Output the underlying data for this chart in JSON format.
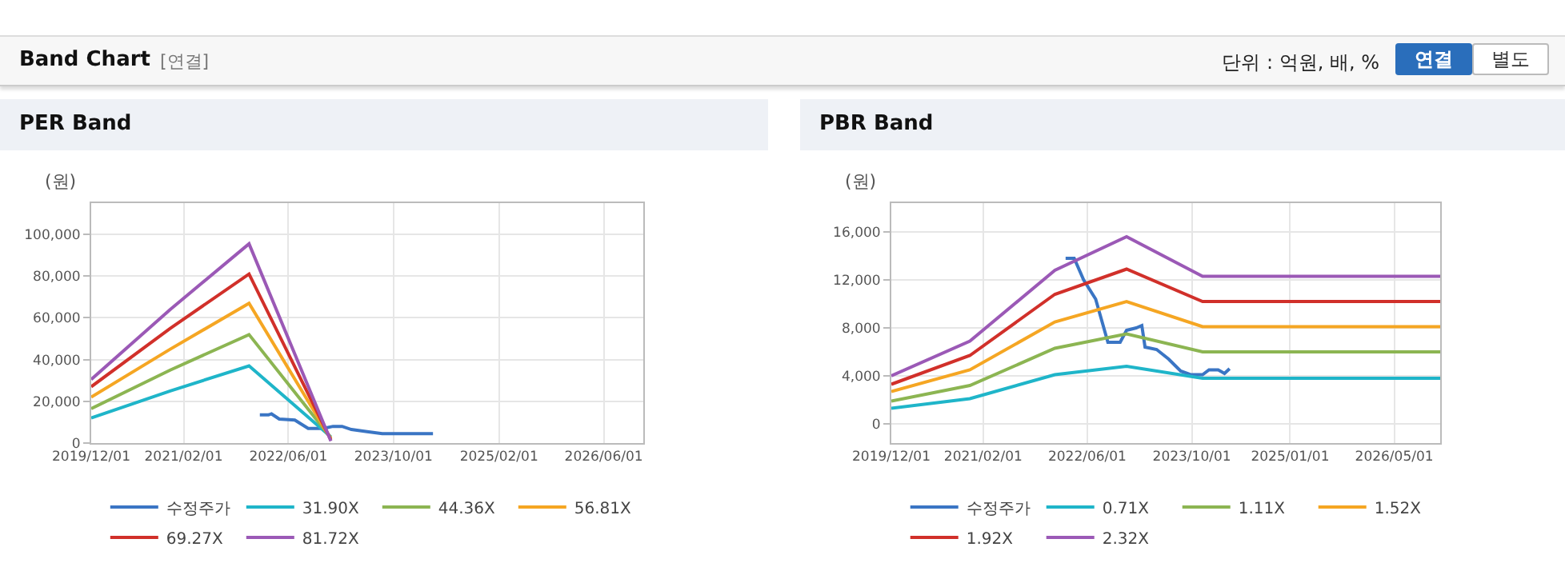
{
  "chart_data": [
    {
      "type": "line",
      "title": "PER Band",
      "ylabel": "(원)",
      "annotations": [
        "Band Chart",
        "[연결]",
        "단위 : 억원, 배, %",
        "연결",
        "별도"
      ],
      "xlim": [
        "2019-12-01",
        "2026-12-01"
      ],
      "xticks": [
        {
          "value": "2019-12-01",
          "label": "2019/12/01"
        },
        {
          "value": "2021-02-01",
          "label": "2021/02/01"
        },
        {
          "value": "2022-06-01",
          "label": "2022/06/01"
        },
        {
          "value": "2023-10-01",
          "label": "2023/10/01"
        },
        {
          "value": "2025-02-01",
          "label": "2025/02/01"
        },
        {
          "value": "2026-06-01",
          "label": "2026/06/01"
        }
      ],
      "ylim": [
        0,
        115000
      ],
      "yticks": [
        {
          "value": 0,
          "label": "0"
        },
        {
          "value": 20000,
          "label": "20,000"
        },
        {
          "value": 40000,
          "label": "40,000"
        },
        {
          "value": 60000,
          "label": "60,000"
        },
        {
          "value": 80000,
          "label": "80,000"
        },
        {
          "value": 100000,
          "label": "100,000"
        }
      ],
      "grid": true,
      "legend": "bottom",
      "marker": "none",
      "line_style": "solid",
      "series": [
        {
          "name": "수정주가",
          "color": "#3a75c4",
          "x": [
            "2022-01-20",
            "2022-03-01",
            "2022-03-15",
            "2022-04-20",
            "2022-07-01",
            "2022-09-01",
            "2022-11-10",
            "2022-12-25",
            "2023-02-05",
            "2023-03-20",
            "2023-06-01",
            "2023-08-10",
            "2024-04-01"
          ],
          "values": [
            13500,
            13500,
            14000,
            11500,
            11000,
            7000,
            7000,
            8000,
            8000,
            6500,
            5500,
            4500,
            4500
          ]
        },
        {
          "name": "31.90X",
          "color": "#1fb5c9",
          "x": [
            "2019-12-01",
            "2020-12-01",
            "2021-12-01",
            "2022-12-15"
          ],
          "values": [
            12000,
            25000,
            37000,
            3000
          ]
        },
        {
          "name": "44.36X",
          "color": "#8cb552",
          "x": [
            "2019-12-01",
            "2020-12-01",
            "2021-12-01",
            "2022-12-15"
          ],
          "values": [
            16500,
            35000,
            52000,
            2500
          ]
        },
        {
          "name": "56.81X",
          "color": "#f5a623",
          "x": [
            "2019-12-01",
            "2020-12-01",
            "2021-12-01",
            "2022-12-15"
          ],
          "values": [
            22000,
            45000,
            67000,
            2000
          ]
        },
        {
          "name": "69.27X",
          "color": "#d1302a",
          "x": [
            "2019-12-01",
            "2020-12-01",
            "2021-12-01",
            "2022-12-15"
          ],
          "values": [
            27000,
            55000,
            81000,
            1500
          ]
        },
        {
          "name": "81.72X",
          "color": "#9b59b6",
          "x": [
            "2019-12-01",
            "2020-12-01",
            "2021-12-01",
            "2022-12-15"
          ],
          "values": [
            30500,
            64000,
            95500,
            1000
          ]
        }
      ]
    },
    {
      "type": "line",
      "title": "PBR Band",
      "ylabel": "(원)",
      "xlim": [
        "2019-12-01",
        "2026-12-01"
      ],
      "xticks": [
        {
          "value": "2019-12-01",
          "label": "2019/12/01"
        },
        {
          "value": "2021-02-01",
          "label": "2021/02/01"
        },
        {
          "value": "2022-06-01",
          "label": "2022/06/01"
        },
        {
          "value": "2023-10-01",
          "label": "2023/10/01"
        },
        {
          "value": "2025-01-01",
          "label": "2025/01/01"
        },
        {
          "value": "2026-05-01",
          "label": "2026/05/01"
        }
      ],
      "ylim": [
        -1600,
        18400
      ],
      "yticks": [
        {
          "value": 0,
          "label": "0"
        },
        {
          "value": 4000,
          "label": "4,000"
        },
        {
          "value": 8000,
          "label": "8,000"
        },
        {
          "value": 12000,
          "label": "12,000"
        },
        {
          "value": 16000,
          "label": "16,000"
        }
      ],
      "grid": true,
      "legend": "bottom",
      "marker": "none",
      "line_style": "solid",
      "series": [
        {
          "name": "수정주가",
          "color": "#3a75c4",
          "x": [
            "2022-02-20",
            "2022-04-01",
            "2022-05-15",
            "2022-07-10",
            "2022-09-05",
            "2022-11-01",
            "2022-12-01",
            "2023-01-15",
            "2023-02-10",
            "2023-02-25",
            "2023-04-20",
            "2023-06-15",
            "2023-08-10",
            "2023-09-25",
            "2023-11-20",
            "2023-12-20",
            "2024-02-01",
            "2024-03-01",
            "2024-03-25"
          ],
          "values": [
            13800,
            13800,
            12000,
            10400,
            6800,
            6800,
            7800,
            8000,
            8200,
            6400,
            6200,
            5400,
            4400,
            4100,
            4100,
            4500,
            4500,
            4200,
            4600
          ]
        },
        {
          "name": "0.71X",
          "color": "#1fb5c9",
          "x": [
            "2019-12-01",
            "2020-12-01",
            "2022-01-01",
            "2022-12-01",
            "2023-11-20",
            "2026-12-01"
          ],
          "values": [
            1300,
            2100,
            4100,
            4800,
            3800,
            3800
          ]
        },
        {
          "name": "1.11X",
          "color": "#8cb552",
          "x": [
            "2019-12-01",
            "2020-12-01",
            "2022-01-01",
            "2022-12-01",
            "2023-11-20",
            "2026-12-01"
          ],
          "values": [
            1900,
            3200,
            6300,
            7500,
            6000,
            6000
          ]
        },
        {
          "name": "1.52X",
          "color": "#f5a623",
          "x": [
            "2019-12-01",
            "2020-12-01",
            "2022-01-01",
            "2022-12-01",
            "2023-11-20",
            "2026-12-01"
          ],
          "values": [
            2700,
            4500,
            8500,
            10200,
            8100,
            8100
          ]
        },
        {
          "name": "1.92X",
          "color": "#d1302a",
          "x": [
            "2019-12-01",
            "2020-12-01",
            "2022-01-01",
            "2022-12-01",
            "2023-11-20",
            "2026-12-01"
          ],
          "values": [
            3300,
            5700,
            10800,
            12900,
            10200,
            10200
          ]
        },
        {
          "name": "2.32X",
          "color": "#9b59b6",
          "x": [
            "2019-12-01",
            "2020-12-01",
            "2022-01-01",
            "2022-12-01",
            "2023-11-20",
            "2026-12-01"
          ],
          "values": [
            4000,
            6900,
            12800,
            15600,
            12300,
            12300
          ]
        }
      ]
    }
  ]
}
